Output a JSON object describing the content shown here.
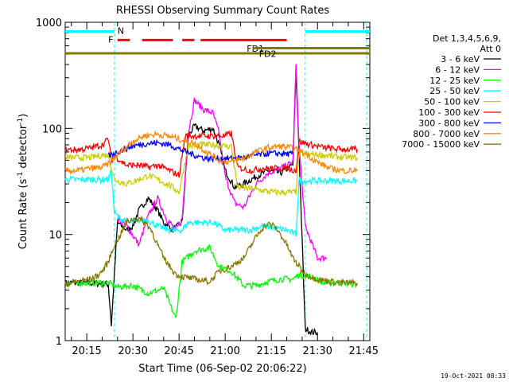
{
  "chart_data": {
    "type": "line",
    "title": "RHESSI Observing Summary Count Rates",
    "xlabel": "Start Time (06-Sep-02 20:06:22)",
    "ylabel_pre": "Count Rate (s",
    "ylabel_sup": "-1",
    "ylabel_mid": " detector",
    "ylabel_post": ")",
    "x_range_min": [
      8,
      46
    ],
    "y_log": true,
    "ylim": [
      1,
      1000
    ],
    "y_ticks": [
      {
        "value": 1,
        "label": "1"
      },
      {
        "value": 10,
        "label": "10"
      },
      {
        "value": 100,
        "label": "100"
      },
      {
        "value": 1000,
        "label": "1000"
      }
    ],
    "x_ticks": [
      {
        "min": 15,
        "label": "20:15"
      },
      {
        "min": 30,
        "label": "20:30"
      },
      {
        "min": 45,
        "label": "20:45"
      },
      {
        "min": 60,
        "label": "21:00"
      },
      {
        "min": 75,
        "label": "21:15"
      },
      {
        "min": 90,
        "label": "21:30"
      },
      {
        "min": 105,
        "label": "21:45"
      }
    ],
    "x_axis_min_start": 8,
    "x_axis_min_end": 107,
    "legend_header": [
      "Det 1,3,4,5,6,9,",
      "Att 0"
    ],
    "legend_placement": "right",
    "series": [
      {
        "name": "3 - 6 keV",
        "color": "#000000",
        "data": [
          [
            8,
            3.5
          ],
          [
            15,
            3.5
          ],
          [
            22,
            3.4
          ],
          [
            23,
            1.4
          ],
          [
            25,
            13
          ],
          [
            28,
            11
          ],
          [
            30,
            12
          ],
          [
            32,
            17
          ],
          [
            35,
            22
          ],
          [
            38,
            17
          ],
          [
            40,
            13
          ],
          [
            43,
            11
          ],
          [
            46,
            13
          ],
          [
            48,
            85
          ],
          [
            50,
            105
          ],
          [
            53,
            95
          ],
          [
            56,
            100
          ],
          [
            58,
            70
          ],
          [
            60,
            40
          ],
          [
            63,
            28
          ],
          [
            66,
            30
          ],
          [
            70,
            35
          ],
          [
            74,
            40
          ],
          [
            78,
            38
          ],
          [
            82,
            45
          ],
          [
            83,
            350
          ],
          [
            84,
            60
          ],
          [
            86,
            1.3
          ],
          [
            88,
            1.2
          ],
          [
            90,
            1.2
          ]
        ]
      },
      {
        "name": "6 - 12 keV",
        "color": "#ff00ff",
        "data": [
          [
            25,
            14
          ],
          [
            28,
            12
          ],
          [
            32,
            8
          ],
          [
            35,
            15
          ],
          [
            38,
            22
          ],
          [
            41,
            14
          ],
          [
            44,
            11
          ],
          [
            46,
            14
          ],
          [
            48,
            90
          ],
          [
            50,
            185
          ],
          [
            53,
            150
          ],
          [
            56,
            140
          ],
          [
            58,
            90
          ],
          [
            60,
            35
          ],
          [
            63,
            20
          ],
          [
            66,
            18
          ],
          [
            70,
            30
          ],
          [
            74,
            38
          ],
          [
            78,
            42
          ],
          [
            82,
            48
          ],
          [
            83,
            400
          ],
          [
            84,
            70
          ],
          [
            86,
            12
          ],
          [
            90,
            6
          ],
          [
            93,
            6
          ]
        ]
      },
      {
        "name": "12 - 25 keV",
        "color": "#00ff00",
        "data": [
          [
            8,
            3.5
          ],
          [
            15,
            3.5
          ],
          [
            22,
            3.5
          ],
          [
            25,
            3.2
          ],
          [
            30,
            3.3
          ],
          [
            35,
            2.8
          ],
          [
            40,
            3.1
          ],
          [
            42,
            2.2
          ],
          [
            44,
            1.6
          ],
          [
            46,
            5.5
          ],
          [
            50,
            7
          ],
          [
            55,
            7.5
          ],
          [
            58,
            5
          ],
          [
            62,
            4.5
          ],
          [
            66,
            3.3
          ],
          [
            70,
            3.3
          ],
          [
            74,
            3.6
          ],
          [
            78,
            3.8
          ],
          [
            82,
            3.8
          ],
          [
            84,
            4.2
          ],
          [
            88,
            4.0
          ],
          [
            92,
            3.5
          ],
          [
            98,
            3.5
          ],
          [
            103,
            3.4
          ]
        ]
      },
      {
        "name": "25 - 50 keV",
        "color": "#00ffff",
        "data": [
          [
            8,
            33
          ],
          [
            15,
            33
          ],
          [
            22,
            33
          ],
          [
            23,
            40
          ],
          [
            24,
            16
          ],
          [
            26,
            14
          ],
          [
            30,
            13
          ],
          [
            34,
            14
          ],
          [
            38,
            12
          ],
          [
            42,
            11
          ],
          [
            46,
            11
          ],
          [
            48,
            13
          ],
          [
            52,
            13
          ],
          [
            56,
            13
          ],
          [
            60,
            11
          ],
          [
            64,
            11
          ],
          [
            68,
            11
          ],
          [
            72,
            12
          ],
          [
            76,
            11.5
          ],
          [
            80,
            11
          ],
          [
            83,
            10
          ],
          [
            84,
            32
          ],
          [
            88,
            32
          ],
          [
            92,
            32
          ],
          [
            96,
            32
          ],
          [
            103,
            32
          ]
        ]
      },
      {
        "name": "50 - 100 keV",
        "color": "#cccc00",
        "data": [
          [
            8,
            53
          ],
          [
            12,
            53
          ],
          [
            16,
            53
          ],
          [
            20,
            56
          ],
          [
            22,
            56
          ],
          [
            24,
            33
          ],
          [
            28,
            30
          ],
          [
            32,
            33
          ],
          [
            35,
            36
          ],
          [
            38,
            33
          ],
          [
            42,
            29
          ],
          [
            45,
            25
          ],
          [
            48,
            68
          ],
          [
            52,
            70
          ],
          [
            56,
            70
          ],
          [
            60,
            68
          ],
          [
            62,
            68
          ],
          [
            64,
            28
          ],
          [
            68,
            27
          ],
          [
            72,
            26
          ],
          [
            76,
            25
          ],
          [
            80,
            25
          ],
          [
            83,
            25
          ],
          [
            84,
            57
          ],
          [
            88,
            57
          ],
          [
            92,
            56
          ],
          [
            96,
            54
          ],
          [
            103,
            53
          ]
        ]
      },
      {
        "name": "100 - 300 keV",
        "color": "#ff0000",
        "data": [
          [
            8,
            63
          ],
          [
            12,
            63
          ],
          [
            16,
            65
          ],
          [
            20,
            70
          ],
          [
            22,
            80
          ],
          [
            23,
            50
          ],
          [
            24,
            55
          ],
          [
            28,
            45
          ],
          [
            32,
            45
          ],
          [
            35,
            43
          ],
          [
            38,
            45
          ],
          [
            42,
            40
          ],
          [
            45,
            36
          ],
          [
            47,
            85
          ],
          [
            52,
            85
          ],
          [
            56,
            85
          ],
          [
            60,
            85
          ],
          [
            62,
            90
          ],
          [
            64,
            43
          ],
          [
            68,
            40
          ],
          [
            72,
            42
          ],
          [
            76,
            42
          ],
          [
            80,
            42
          ],
          [
            83,
            40
          ],
          [
            84,
            75
          ],
          [
            88,
            70
          ],
          [
            92,
            66
          ],
          [
            96,
            64
          ],
          [
            103,
            63
          ]
        ]
      },
      {
        "name": "300 - 800 keV",
        "color": "#0000ff",
        "data": [
          [
            22,
            55
          ],
          [
            26,
            62
          ],
          [
            30,
            68
          ],
          [
            34,
            72
          ],
          [
            38,
            73
          ],
          [
            42,
            70
          ],
          [
            46,
            62
          ],
          [
            50,
            56
          ],
          [
            54,
            52
          ],
          [
            58,
            52
          ],
          [
            62,
            52
          ],
          [
            66,
            53
          ],
          [
            70,
            56
          ],
          [
            74,
            58
          ],
          [
            78,
            58
          ],
          [
            82,
            57
          ]
        ]
      },
      {
        "name": "800 - 7000 keV",
        "color": "#ff8800",
        "data": [
          [
            8,
            40
          ],
          [
            12,
            40
          ],
          [
            16,
            42
          ],
          [
            20,
            43
          ],
          [
            22,
            46
          ],
          [
            26,
            60
          ],
          [
            30,
            76
          ],
          [
            34,
            86
          ],
          [
            38,
            88
          ],
          [
            42,
            84
          ],
          [
            46,
            78
          ],
          [
            50,
            72
          ],
          [
            54,
            60
          ],
          [
            58,
            50
          ],
          [
            62,
            48
          ],
          [
            66,
            52
          ],
          [
            70,
            60
          ],
          [
            74,
            66
          ],
          [
            78,
            68
          ],
          [
            82,
            65
          ],
          [
            86,
            58
          ],
          [
            90,
            48
          ],
          [
            94,
            42
          ],
          [
            98,
            40
          ],
          [
            103,
            40
          ]
        ]
      },
      {
        "name": "7000 - 15000 keV",
        "color": "#887700",
        "data": [
          [
            8,
            3.4
          ],
          [
            12,
            3.6
          ],
          [
            16,
            3.8
          ],
          [
            18,
            4.0
          ],
          [
            20,
            4.5
          ],
          [
            22,
            5.5
          ],
          [
            24,
            8
          ],
          [
            26,
            10
          ],
          [
            28,
            13
          ],
          [
            30,
            14
          ],
          [
            32,
            14
          ],
          [
            34,
            13
          ],
          [
            36,
            11
          ],
          [
            38,
            8
          ],
          [
            40,
            6
          ],
          [
            42,
            5
          ],
          [
            44,
            4.2
          ],
          [
            46,
            4.0
          ],
          [
            50,
            3.8
          ],
          [
            55,
            3.6
          ],
          [
            58,
            4.5
          ],
          [
            62,
            5
          ],
          [
            66,
            6
          ],
          [
            68,
            7.5
          ],
          [
            70,
            9.5
          ],
          [
            72,
            11.5
          ],
          [
            74,
            12.5
          ],
          [
            76,
            12
          ],
          [
            78,
            10
          ],
          [
            80,
            8
          ],
          [
            82,
            6
          ],
          [
            84,
            5
          ],
          [
            86,
            4.2
          ],
          [
            90,
            3.8
          ],
          [
            94,
            3.6
          ],
          [
            98,
            3.5
          ],
          [
            103,
            3.5
          ]
        ]
      }
    ],
    "flag_bars": [
      {
        "name": "N",
        "color": "#00ffff",
        "segments": [
          [
            0,
            24
          ],
          [
            86,
            107
          ]
        ],
        "value": 820,
        "label": "N",
        "label_at": 25
      },
      {
        "name": "F",
        "color": "#ff0000",
        "segments": [
          [
            25,
            29
          ],
          [
            33,
            43
          ],
          [
            46,
            50
          ],
          [
            52,
            80
          ]
        ],
        "value": 680,
        "label": "F",
        "label_at": 22
      },
      {
        "name": "FD1",
        "color": "#887700",
        "segments": [
          [
            0,
            107
          ]
        ],
        "value": 510,
        "label": "FD1",
        "label_at": 67
      },
      {
        "name": "FD2",
        "color": "#887700",
        "segments": [
          [
            69,
            107
          ]
        ],
        "value": 570,
        "label": "FD2",
        "label_at": 71
      }
    ],
    "vlines": [
      {
        "min": 24,
        "color": "#00ffff"
      },
      {
        "min": 86,
        "color": "#00ffff"
      },
      {
        "min": 106,
        "color": "#00ffff"
      }
    ],
    "footer_stamp": "19-Oct-2021 08:33"
  }
}
